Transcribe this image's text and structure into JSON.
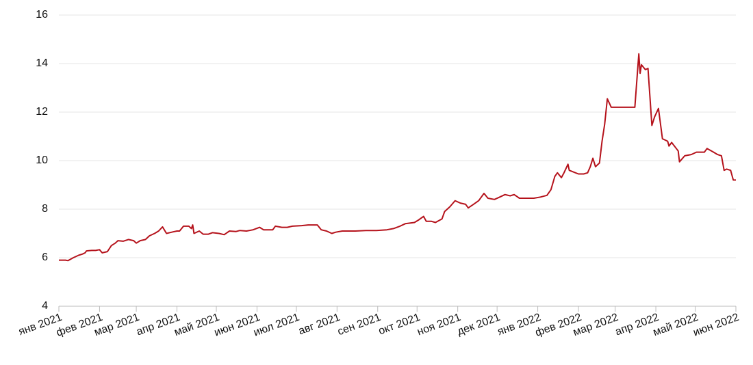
{
  "chart_data": {
    "type": "line",
    "x": [
      0,
      5,
      7,
      11,
      15,
      18,
      20,
      21,
      25,
      28,
      31,
      33,
      37,
      40,
      43,
      45,
      49,
      53,
      57,
      59,
      62,
      66,
      69,
      73,
      76,
      79,
      82,
      86,
      90,
      92,
      95,
      99,
      101,
      102,
      103,
      107,
      110,
      114,
      117,
      122,
      126,
      130,
      135,
      138,
      143,
      148,
      153,
      156,
      163,
      165,
      170,
      174,
      178,
      185,
      190,
      197,
      200,
      204,
      208,
      211,
      216,
      221,
      226,
      234,
      242,
      250,
      255,
      260,
      264,
      271,
      274,
      278,
      280,
      284,
      287,
      292,
      294,
      298,
      302,
      306,
      310,
      312,
      316,
      320,
      324,
      327,
      332,
      336,
      340,
      344,
      347,
      351,
      356,
      362,
      367,
      372,
      375,
      378,
      380,
      383,
      385,
      388,
      389,
      396,
      400,
      403,
      405,
      407,
      409,
      412,
      414,
      416,
      418,
      421,
      427,
      434,
      439,
      442,
      443,
      444,
      447,
      449,
      452,
      454,
      457,
      460,
      464,
      465,
      467,
      472,
      473,
      477,
      482,
      486,
      492,
      494,
      499,
      502,
      505,
      507,
      509,
      512,
      514,
      516
    ],
    "series": [
      {
        "color": "#b5121b",
        "values": [
          5.9,
          5.9,
          5.88,
          6.0,
          6.1,
          6.15,
          6.2,
          6.28,
          6.3,
          6.3,
          6.33,
          6.2,
          6.25,
          6.5,
          6.6,
          6.7,
          6.68,
          6.75,
          6.7,
          6.6,
          6.7,
          6.75,
          6.9,
          7.0,
          7.1,
          7.27,
          7.0,
          7.05,
          7.1,
          7.1,
          7.3,
          7.3,
          7.2,
          7.35,
          7.0,
          7.1,
          6.97,
          6.97,
          7.03,
          7.0,
          6.95,
          7.1,
          7.08,
          7.12,
          7.1,
          7.15,
          7.25,
          7.15,
          7.15,
          7.3,
          7.25,
          7.25,
          7.3,
          7.32,
          7.35,
          7.35,
          7.15,
          7.1,
          7.0,
          7.05,
          7.1,
          7.1,
          7.1,
          7.12,
          7.12,
          7.15,
          7.2,
          7.3,
          7.4,
          7.45,
          7.55,
          7.7,
          7.5,
          7.5,
          7.45,
          7.6,
          7.9,
          8.1,
          8.35,
          8.25,
          8.2,
          8.05,
          8.2,
          8.35,
          8.65,
          8.45,
          8.4,
          8.5,
          8.6,
          8.55,
          8.6,
          8.45,
          8.45,
          8.45,
          8.5,
          8.57,
          8.8,
          9.35,
          9.5,
          9.3,
          9.5,
          9.85,
          9.6,
          9.45,
          9.45,
          9.5,
          9.75,
          10.1,
          9.75,
          9.9,
          10.8,
          11.5,
          12.55,
          12.2,
          12.2,
          12.2,
          12.2,
          14.4,
          13.6,
          13.95,
          13.75,
          13.8,
          11.45,
          11.8,
          12.15,
          10.9,
          10.8,
          10.6,
          10.75,
          10.4,
          9.95,
          10.2,
          10.25,
          10.35,
          10.35,
          10.5,
          10.35,
          10.25,
          10.2,
          9.6,
          9.65,
          9.6,
          9.2,
          9.2
        ]
      }
    ],
    "xlim": [
      0,
      516
    ],
    "xticks": [
      {
        "value": 0,
        "label": "янв 2021"
      },
      {
        "value": 31,
        "label": "фев 2021"
      },
      {
        "value": 59,
        "label": "мар 2021"
      },
      {
        "value": 90,
        "label": "апр 2021"
      },
      {
        "value": 120,
        "label": "май 2021"
      },
      {
        "value": 151,
        "label": "июн 2021"
      },
      {
        "value": 181,
        "label": "июл 2021"
      },
      {
        "value": 212,
        "label": "авг 2021"
      },
      {
        "value": 243,
        "label": "сен 2021"
      },
      {
        "value": 273,
        "label": "окт 2021"
      },
      {
        "value": 304,
        "label": "ноя 2021"
      },
      {
        "value": 334,
        "label": "дек 2021"
      },
      {
        "value": 365,
        "label": "янв 2022"
      },
      {
        "value": 396,
        "label": "фев 2022"
      },
      {
        "value": 424,
        "label": "мар 2022"
      },
      {
        "value": 455,
        "label": "апр 2022"
      },
      {
        "value": 485,
        "label": "май 2022"
      },
      {
        "value": 516,
        "label": "июн 2022"
      }
    ],
    "ylim": [
      4,
      16
    ],
    "yticks": [
      4,
      6,
      8,
      10,
      12,
      14,
      16
    ],
    "grid": true
  }
}
